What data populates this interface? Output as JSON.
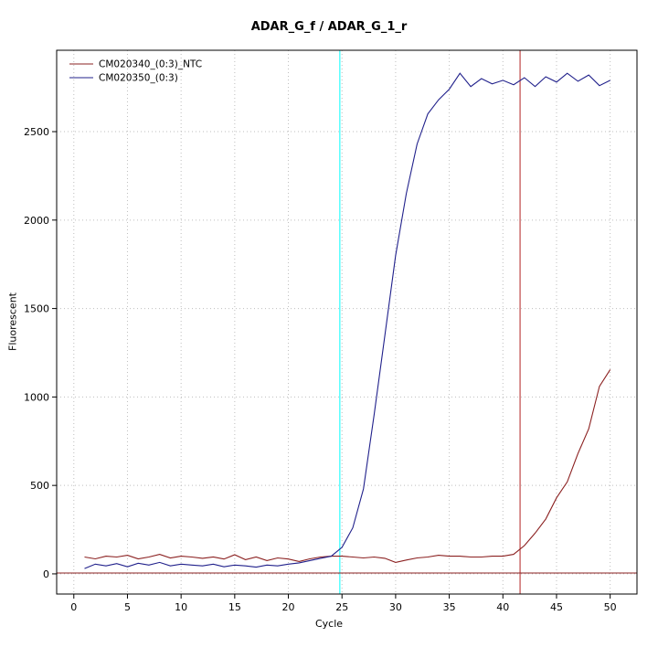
{
  "chart_data": {
    "type": "line",
    "title": "ADAR_G_f / ADAR_G_1_r",
    "xlabel": "Cycle",
    "ylabel": "Fluorescent",
    "xlim": [
      -1.6,
      52.5
    ],
    "ylim": [
      -114,
      2960
    ],
    "xticks": [
      0,
      5,
      10,
      15,
      20,
      25,
      30,
      35,
      40,
      45,
      50
    ],
    "yticks": [
      0,
      500,
      1000,
      1500,
      2000,
      2500
    ],
    "grid": {
      "show": true,
      "style": "dotted",
      "color": "#bebebe"
    },
    "axis_color": "#000000",
    "legend": {
      "position": "top-left"
    },
    "threshold_line": {
      "y": 5,
      "color": "#8B2020"
    },
    "vlines": [
      {
        "x": 24.8,
        "color": "#00FFFF",
        "name": "cyan-marker-line"
      },
      {
        "x": 41.6,
        "color": "#B22222",
        "name": "ct-marker-line"
      }
    ],
    "x": [
      1,
      2,
      3,
      4,
      5,
      6,
      7,
      8,
      9,
      10,
      11,
      12,
      13,
      14,
      15,
      16,
      17,
      18,
      19,
      20,
      21,
      22,
      23,
      24,
      25,
      26,
      27,
      28,
      29,
      30,
      31,
      32,
      33,
      34,
      35,
      36,
      37,
      38,
      39,
      40,
      41,
      42,
      43,
      44,
      45,
      46,
      47,
      48,
      49,
      50
    ],
    "series": [
      {
        "name": "CM020340_(0:3)_NTC",
        "color": "#8B2020",
        "values": [
          95,
          85,
          100,
          95,
          105,
          85,
          95,
          110,
          90,
          100,
          95,
          88,
          96,
          84,
          108,
          80,
          95,
          75,
          90,
          84,
          70,
          85,
          95,
          100,
          100,
          95,
          90,
          95,
          88,
          65,
          78,
          90,
          95,
          105,
          100,
          100,
          95,
          95,
          100,
          100,
          110,
          160,
          230,
          310,
          430,
          520,
          680,
          820,
          1060,
          1155
        ]
      },
      {
        "name": "CM020350_(0:3)",
        "color": "#20208B",
        "values": [
          30,
          55,
          45,
          58,
          40,
          60,
          50,
          65,
          45,
          55,
          50,
          45,
          55,
          40,
          50,
          45,
          38,
          50,
          45,
          55,
          62,
          75,
          88,
          100,
          150,
          260,
          480,
          900,
          1350,
          1800,
          2150,
          2430,
          2600,
          2680,
          2740,
          2830,
          2755,
          2800,
          2770,
          2790,
          2765,
          2805,
          2755,
          2810,
          2780,
          2830,
          2785,
          2820,
          2760,
          2790
        ]
      }
    ]
  }
}
